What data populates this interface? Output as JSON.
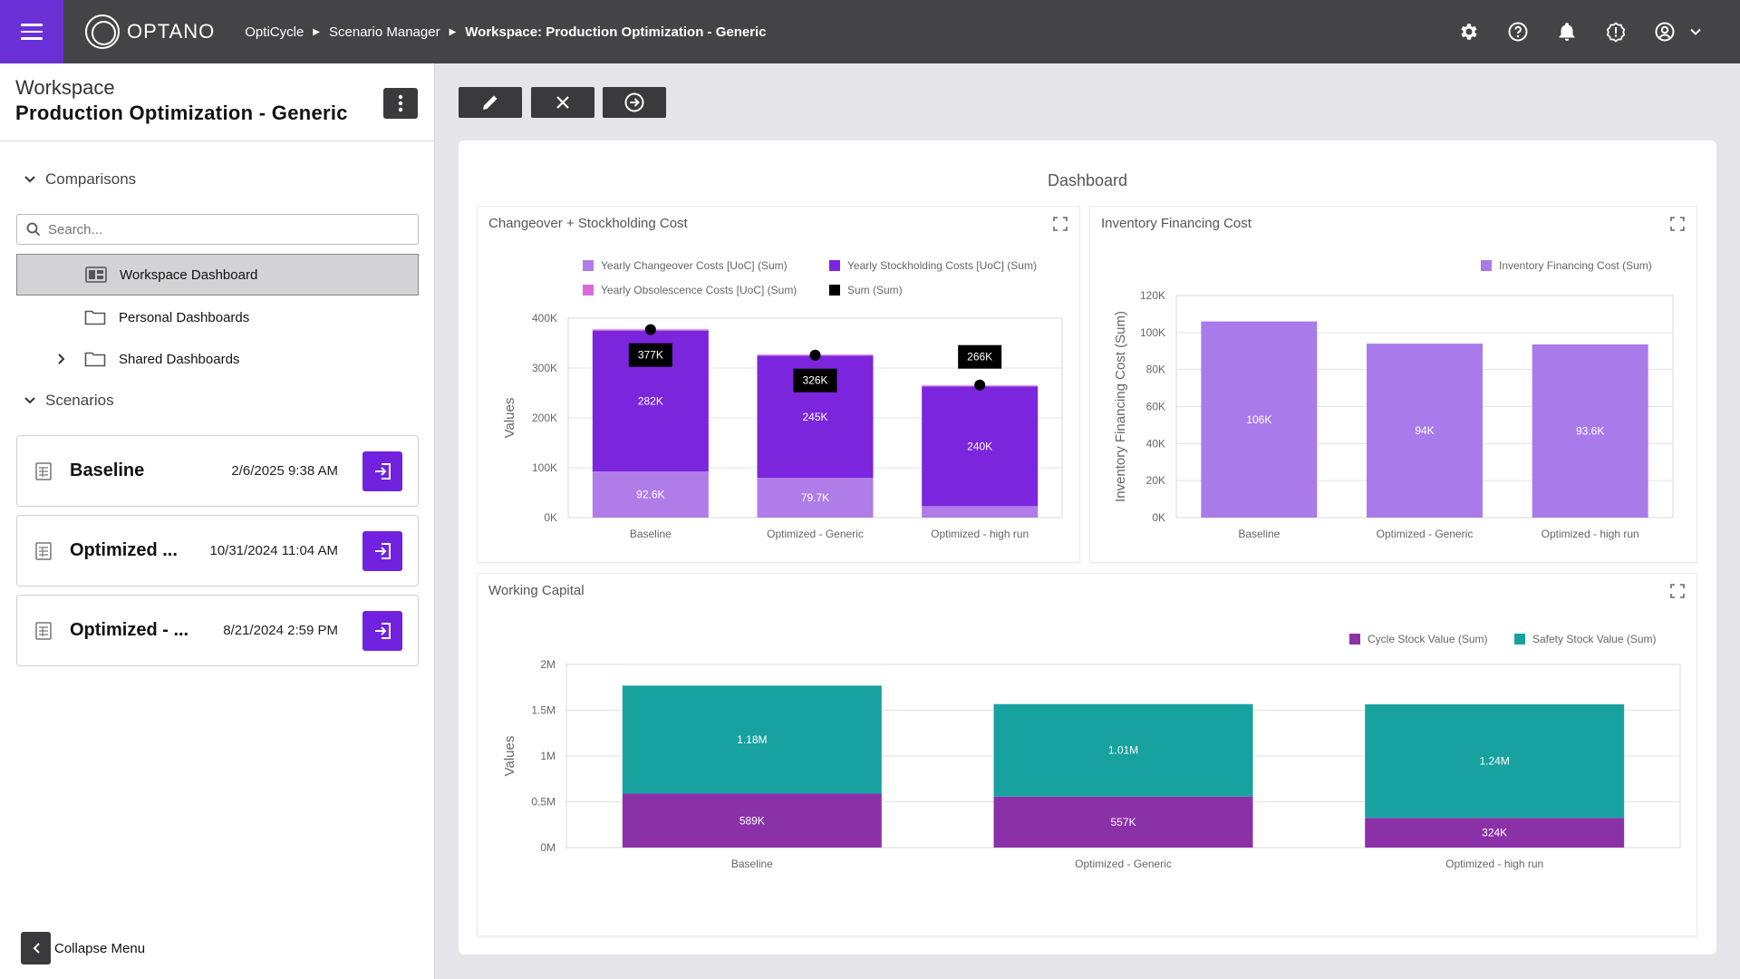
{
  "topbar": {
    "logo": "OPTANO",
    "breadcrumbs": [
      "OptiCycle",
      "Scenario Manager",
      "Workspace: Production Optimization - Generic"
    ]
  },
  "sidebar": {
    "workspace_label": "Workspace",
    "workspace_title": "Production Optimization - Generic",
    "comparisons_label": "Comparisons",
    "search_placeholder": "Search...",
    "tree": [
      {
        "label": "Workspace Dashboard",
        "selected": true
      },
      {
        "label": "Personal Dashboards"
      },
      {
        "label": "Shared Dashboards"
      }
    ],
    "scenarios_label": "Scenarios",
    "scenarios": [
      {
        "name": "Baseline",
        "date": "2/6/2025 9:38 AM"
      },
      {
        "name": "Optimized ...",
        "date": "10/31/2024 11:04 AM"
      },
      {
        "name": "Optimized - ...",
        "date": "8/21/2024 2:59 PM"
      }
    ],
    "collapse_label": "Collapse Menu"
  },
  "toolbar": {
    "icons": [
      "pencil-icon",
      "close-icon",
      "arrow-right-circle-icon"
    ]
  },
  "dashboard": {
    "title": "Dashboard",
    "colors": {
      "changeover": "#b07ce8",
      "stockholding": "#7b25dd",
      "obsolescence": "#d86ad8",
      "sum": "#000000",
      "financing": "#a97bea",
      "cycle_stock": "#8b31a8",
      "safety_stock": "#17a2a0"
    }
  },
  "chart_data": [
    {
      "type": "bar",
      "title": "Changeover + Stockholding Cost",
      "stacked": true,
      "categories": [
        "Baseline",
        "Optimized - Generic",
        "Optimized - high run"
      ],
      "ylabel": "Values",
      "ylim": [
        0,
        400000
      ],
      "yticks": [
        "0K",
        "100K",
        "200K",
        "300K",
        "400K"
      ],
      "legend": [
        "Yearly Changeover Costs [UoC] (Sum)",
        "Yearly Stockholding Costs [UoC] (Sum)",
        "Yearly Obsolescence Costs [UoC] (Sum)",
        "Sum (Sum)"
      ],
      "series": [
        {
          "name": "Yearly Changeover Costs [UoC] (Sum)",
          "values": [
            92600,
            79700,
            23000
          ],
          "labels": [
            "92.6K",
            "79.7K",
            ""
          ]
        },
        {
          "name": "Yearly Stockholding Costs [UoC] (Sum)",
          "values": [
            282000,
            245000,
            240000
          ],
          "labels": [
            "282K",
            "245K",
            "240K"
          ]
        },
        {
          "name": "Yearly Obsolescence Costs [UoC] (Sum)",
          "values": [
            3000,
            2000,
            2000
          ],
          "labels": [
            "",
            "",
            ""
          ]
        }
      ],
      "sum": {
        "name": "Sum (Sum)",
        "values": [
          377000,
          326000,
          266000
        ],
        "labels": [
          "377K",
          "326K",
          "266K"
        ]
      }
    },
    {
      "type": "bar",
      "title": "Inventory Financing Cost",
      "categories": [
        "Baseline",
        "Optimized - Generic",
        "Optimized - high run"
      ],
      "ylabel": "Inventory Financing Cost (Sum)",
      "ylim": [
        0,
        120000
      ],
      "yticks": [
        "0K",
        "20K",
        "40K",
        "60K",
        "80K",
        "100K",
        "120K"
      ],
      "legend": [
        "Inventory Financing Cost (Sum)"
      ],
      "series": [
        {
          "name": "Inventory Financing Cost (Sum)",
          "values": [
            106000,
            94000,
            93600
          ],
          "labels": [
            "106K",
            "94K",
            "93.6K"
          ]
        }
      ]
    },
    {
      "type": "bar",
      "title": "Working Capital",
      "stacked": true,
      "categories": [
        "Baseline",
        "Optimized - Generic",
        "Optimized - high run"
      ],
      "ylabel": "Values",
      "ylim": [
        0,
        2000000
      ],
      "yticks": [
        "0M",
        "0.5M",
        "1M",
        "1.5M",
        "2M"
      ],
      "legend": [
        "Cycle Stock Value (Sum)",
        "Safety Stock Value (Sum)"
      ],
      "series": [
        {
          "name": "Cycle Stock Value (Sum)",
          "values": [
            589000,
            557000,
            324000
          ],
          "labels": [
            "589K",
            "557K",
            "324K"
          ]
        },
        {
          "name": "Safety Stock Value (Sum)",
          "values": [
            1180000,
            1010000,
            1240000
          ],
          "labels": [
            "1.18M",
            "1.01M",
            "1.24M"
          ]
        }
      ]
    }
  ]
}
